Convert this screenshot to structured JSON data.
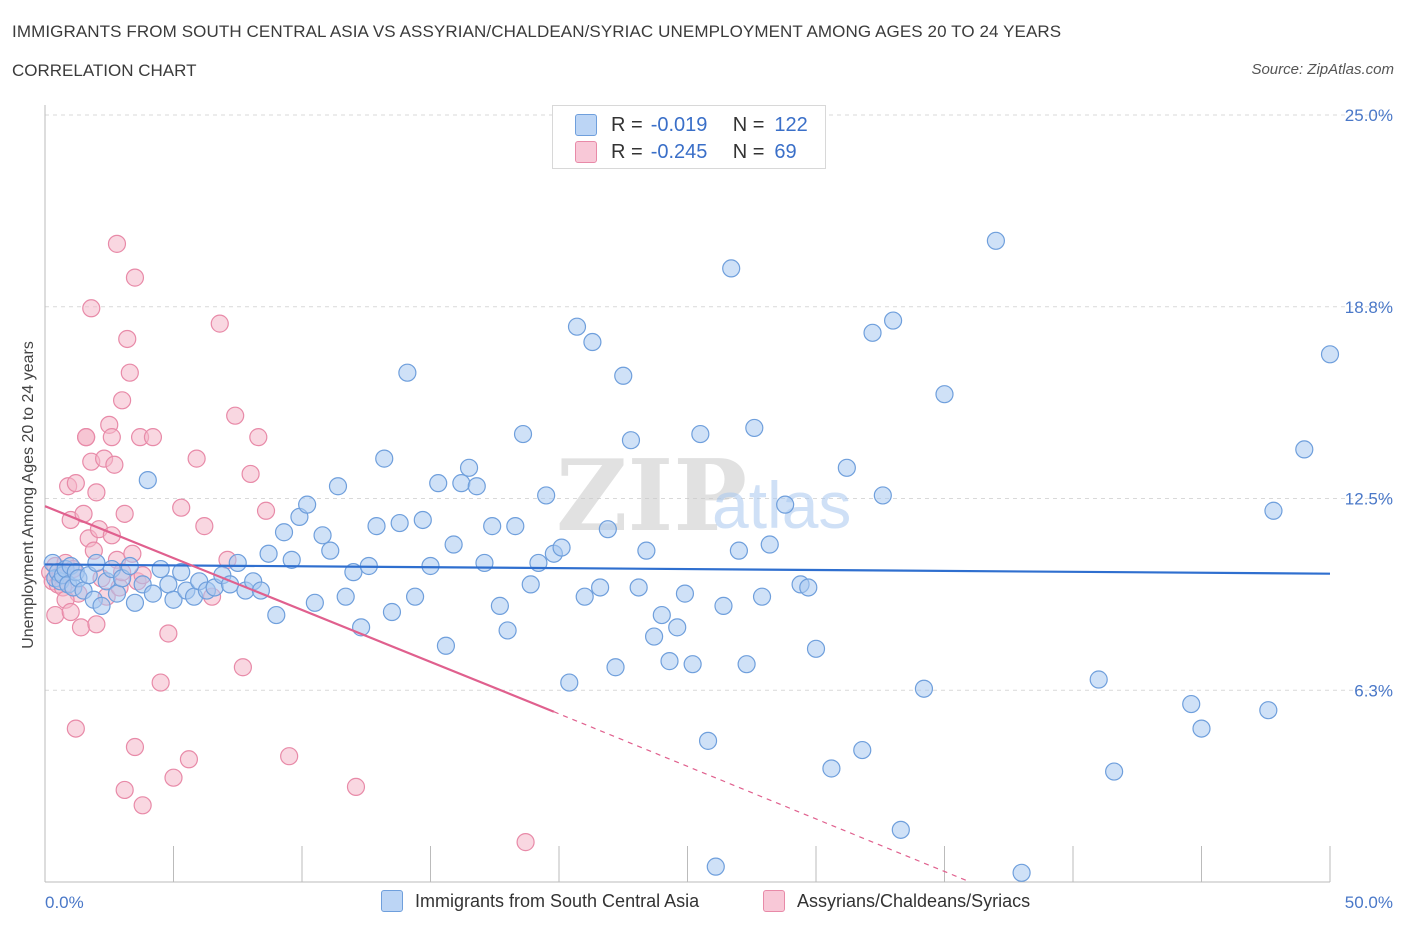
{
  "header": {
    "title": "IMMIGRANTS FROM SOUTH CENTRAL ASIA VS ASSYRIAN/CHALDEAN/SYRIAC UNEMPLOYMENT AMONG AGES 20 TO 24 YEARS",
    "subtitle": "CORRELATION CHART",
    "source": "Source: ZipAtlas.com"
  },
  "legend": {
    "r_label": "R =",
    "n_label": "N =",
    "series": [
      {
        "r": "-0.019",
        "n": "122"
      },
      {
        "r": "-0.245",
        "n": " 69"
      }
    ]
  },
  "bottom_legend": {
    "blue": "Immigrants from South Central Asia",
    "pink": "Assyrians/Chaldeans/Syriacs"
  },
  "watermark": {
    "zip": "ZIP",
    "atlas": "atlas"
  },
  "colors": {
    "blue_fill": "#a8c8f0",
    "blue_stroke": "#6f9fdc",
    "blue_line": "#2f6fcf",
    "pink_fill": "#f4b6c9",
    "pink_stroke": "#e88aa8",
    "pink_line": "#e0608e",
    "grid": "#d9d9d9",
    "tick_text": "#4a78c8"
  },
  "chart_data": {
    "type": "scatter",
    "title": "IMMIGRANTS FROM SOUTH CENTRAL ASIA VS ASSYRIAN/CHALDEAN/SYRIAC UNEMPLOYMENT AMONG AGES 20 TO 24 YEARS",
    "xlabel": "",
    "ylabel": "Unemployment Among Ages 20 to 24 years",
    "xlim": [
      0,
      50
    ],
    "ylim": [
      0,
      25
    ],
    "x_tick_labels": [
      "0.0%",
      "50.0%"
    ],
    "y_ticks": [
      {
        "value": 6.25,
        "label": "6.3%"
      },
      {
        "value": 12.5,
        "label": "12.5%"
      },
      {
        "value": 18.75,
        "label": "18.8%"
      },
      {
        "value": 25.0,
        "label": "25.0%"
      }
    ],
    "x_minor_ticks": [
      0,
      5,
      10,
      15,
      20,
      25,
      30,
      35,
      40,
      45,
      50
    ],
    "series": [
      {
        "name": "Immigrants from South Central Asia",
        "color": "blue",
        "R": -0.019,
        "N": 122,
        "trend": {
          "x0": 0,
          "y0": 10.35,
          "x1": 50,
          "y1": 10.05,
          "dashed_to": null
        },
        "points": [
          [
            0.3,
            10.4
          ],
          [
            0.4,
            9.9
          ],
          [
            0.5,
            10.1
          ],
          [
            0.6,
            9.8
          ],
          [
            0.7,
            10.0
          ],
          [
            0.8,
            10.2
          ],
          [
            0.9,
            9.7
          ],
          [
            1.0,
            10.3
          ],
          [
            1.1,
            9.6
          ],
          [
            1.2,
            10.1
          ],
          [
            1.3,
            9.9
          ],
          [
            1.5,
            9.5
          ],
          [
            1.7,
            10.0
          ],
          [
            1.9,
            9.2
          ],
          [
            2.0,
            10.4
          ],
          [
            2.2,
            9.0
          ],
          [
            2.4,
            9.8
          ],
          [
            2.6,
            10.2
          ],
          [
            2.8,
            9.4
          ],
          [
            3.0,
            9.9
          ],
          [
            3.3,
            10.3
          ],
          [
            3.5,
            9.1
          ],
          [
            3.8,
            9.7
          ],
          [
            4.0,
            13.1
          ],
          [
            4.2,
            9.4
          ],
          [
            4.5,
            10.2
          ],
          [
            4.8,
            9.7
          ],
          [
            5.0,
            9.2
          ],
          [
            5.3,
            10.1
          ],
          [
            5.5,
            9.5
          ],
          [
            5.8,
            9.3
          ],
          [
            6.0,
            9.8
          ],
          [
            6.3,
            9.5
          ],
          [
            6.6,
            9.6
          ],
          [
            6.9,
            10.0
          ],
          [
            7.2,
            9.7
          ],
          [
            7.5,
            10.4
          ],
          [
            7.8,
            9.5
          ],
          [
            8.1,
            9.8
          ],
          [
            8.4,
            9.5
          ],
          [
            8.7,
            10.7
          ],
          [
            9.0,
            8.7
          ],
          [
            9.3,
            11.4
          ],
          [
            9.6,
            10.5
          ],
          [
            9.9,
            11.9
          ],
          [
            10.2,
            12.3
          ],
          [
            10.5,
            9.1
          ],
          [
            10.8,
            11.3
          ],
          [
            11.1,
            10.8
          ],
          [
            11.4,
            12.9
          ],
          [
            11.7,
            9.3
          ],
          [
            12.0,
            10.1
          ],
          [
            12.3,
            8.3
          ],
          [
            12.6,
            10.3
          ],
          [
            12.9,
            11.6
          ],
          [
            13.2,
            13.8
          ],
          [
            13.5,
            8.8
          ],
          [
            13.8,
            11.7
          ],
          [
            14.1,
            16.6
          ],
          [
            14.4,
            9.3
          ],
          [
            14.7,
            11.8
          ],
          [
            15.0,
            10.3
          ],
          [
            15.3,
            13.0
          ],
          [
            15.6,
            7.7
          ],
          [
            15.9,
            11.0
          ],
          [
            16.2,
            13.0
          ],
          [
            16.5,
            13.5
          ],
          [
            16.8,
            12.9
          ],
          [
            17.1,
            10.4
          ],
          [
            17.4,
            11.6
          ],
          [
            17.7,
            9.0
          ],
          [
            18.0,
            8.2
          ],
          [
            18.3,
            11.6
          ],
          [
            18.6,
            14.6
          ],
          [
            18.9,
            9.7
          ],
          [
            19.2,
            10.4
          ],
          [
            19.5,
            12.6
          ],
          [
            19.8,
            10.7
          ],
          [
            20.1,
            10.9
          ],
          [
            20.4,
            6.5
          ],
          [
            20.7,
            18.1
          ],
          [
            21.0,
            9.3
          ],
          [
            21.3,
            17.6
          ],
          [
            21.6,
            9.6
          ],
          [
            21.9,
            11.5
          ],
          [
            22.2,
            7.0
          ],
          [
            22.5,
            16.5
          ],
          [
            22.8,
            14.4
          ],
          [
            23.1,
            9.6
          ],
          [
            23.4,
            10.8
          ],
          [
            23.7,
            8.0
          ],
          [
            24.0,
            8.7
          ],
          [
            24.3,
            7.2
          ],
          [
            24.6,
            8.3
          ],
          [
            24.9,
            9.4
          ],
          [
            25.2,
            7.1
          ],
          [
            25.5,
            14.6
          ],
          [
            25.8,
            4.6
          ],
          [
            26.1,
            0.5
          ],
          [
            26.4,
            9.0
          ],
          [
            26.7,
            20.0
          ],
          [
            27.0,
            10.8
          ],
          [
            27.3,
            7.1
          ],
          [
            27.6,
            14.8
          ],
          [
            27.9,
            9.3
          ],
          [
            28.2,
            11.0
          ],
          [
            28.8,
            12.3
          ],
          [
            29.4,
            9.7
          ],
          [
            29.7,
            9.6
          ],
          [
            30.0,
            7.6
          ],
          [
            30.6,
            3.7
          ],
          [
            31.2,
            13.5
          ],
          [
            31.8,
            4.3
          ],
          [
            32.2,
            17.9
          ],
          [
            32.6,
            12.6
          ],
          [
            33.0,
            18.3
          ],
          [
            33.3,
            1.7
          ],
          [
            34.2,
            6.3
          ],
          [
            35.0,
            15.9
          ],
          [
            37.0,
            20.9
          ],
          [
            38.0,
            0.3
          ],
          [
            41.0,
            6.6
          ],
          [
            41.6,
            3.6
          ],
          [
            44.6,
            5.8
          ],
          [
            45.0,
            5.0
          ],
          [
            47.6,
            5.6
          ],
          [
            47.8,
            12.1
          ],
          [
            49.0,
            14.1
          ],
          [
            51.0,
            17.2
          ]
        ]
      },
      {
        "name": "Assyrians/Chaldeans/Syriacs",
        "color": "pink",
        "R": -0.245,
        "N": 69,
        "trend": {
          "x0": 0,
          "y0": 12.25,
          "x1": 19.8,
          "y1": 5.55,
          "dashed_to": [
            36.0,
            0.0
          ]
        },
        "points": [
          [
            0.2,
            10.1
          ],
          [
            0.3,
            9.8
          ],
          [
            0.4,
            10.3
          ],
          [
            0.5,
            9.7
          ],
          [
            0.6,
            10.0
          ],
          [
            0.7,
            9.6
          ],
          [
            0.8,
            10.4
          ],
          [
            0.9,
            12.9
          ],
          [
            1.0,
            11.8
          ],
          [
            1.1,
            10.2
          ],
          [
            1.2,
            13.0
          ],
          [
            1.3,
            9.4
          ],
          [
            1.4,
            8.3
          ],
          [
            1.5,
            12.0
          ],
          [
            1.6,
            14.5
          ],
          [
            1.7,
            11.2
          ],
          [
            1.8,
            13.7
          ],
          [
            1.9,
            10.8
          ],
          [
            2.0,
            12.7
          ],
          [
            2.1,
            11.5
          ],
          [
            2.2,
            9.9
          ],
          [
            2.3,
            13.8
          ],
          [
            2.4,
            9.3
          ],
          [
            2.5,
            14.9
          ],
          [
            2.6,
            11.3
          ],
          [
            2.7,
            13.6
          ],
          [
            2.8,
            10.5
          ],
          [
            2.9,
            9.6
          ],
          [
            3.0,
            10.1
          ],
          [
            3.1,
            12.0
          ],
          [
            3.2,
            17.7
          ],
          [
            3.3,
            16.6
          ],
          [
            3.4,
            10.7
          ],
          [
            3.5,
            19.7
          ],
          [
            3.6,
            9.8
          ],
          [
            3.7,
            14.5
          ],
          [
            3.8,
            10.0
          ],
          [
            0.4,
            8.7
          ],
          [
            0.8,
            9.2
          ],
          [
            1.0,
            8.8
          ],
          [
            1.2,
            5.0
          ],
          [
            1.6,
            14.5
          ],
          [
            1.8,
            18.7
          ],
          [
            2.0,
            8.4
          ],
          [
            2.6,
            14.5
          ],
          [
            2.8,
            20.8
          ],
          [
            3.0,
            15.7
          ],
          [
            3.1,
            3.0
          ],
          [
            3.5,
            4.4
          ],
          [
            3.8,
            2.5
          ],
          [
            4.2,
            14.5
          ],
          [
            4.5,
            6.5
          ],
          [
            4.8,
            8.1
          ],
          [
            5.0,
            3.4
          ],
          [
            5.3,
            12.2
          ],
          [
            5.6,
            4.0
          ],
          [
            5.9,
            13.8
          ],
          [
            6.2,
            11.6
          ],
          [
            6.5,
            9.3
          ],
          [
            6.8,
            18.2
          ],
          [
            7.1,
            10.5
          ],
          [
            7.4,
            15.2
          ],
          [
            7.7,
            7.0
          ],
          [
            8.0,
            13.3
          ],
          [
            8.3,
            14.5
          ],
          [
            8.6,
            12.1
          ],
          [
            9.5,
            4.1
          ],
          [
            12.1,
            3.1
          ],
          [
            18.7,
            1.3
          ]
        ]
      }
    ]
  }
}
